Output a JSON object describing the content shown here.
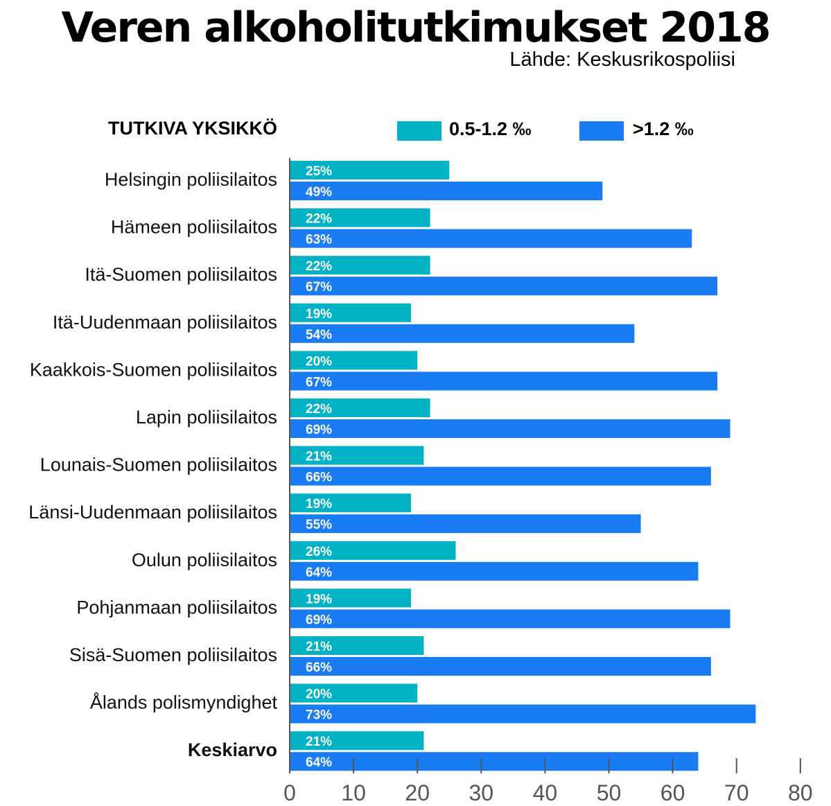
{
  "title": "Veren alkoholitutkimukset 2018",
  "source": "Lähde: Keskusrikospoliisi",
  "category_header": "TUTKIVA YKSIKKÖ",
  "colors": {
    "series1": "#00b2c4",
    "series2": "#1a7cf2",
    "axis": "#555555"
  },
  "chart_data": {
    "type": "bar",
    "orientation": "horizontal",
    "title": "Veren alkoholitutkimukset 2018",
    "subtitle": "Lähde: Keskusrikospoliisi",
    "categories": [
      "Helsingin poliisilaitos",
      "Hämeen poliisilaitos",
      "Itä-Suomen poliisilaitos",
      "Itä-Uudenmaan poliisilaitos",
      "Kaakkois-Suomen poliisilaitos",
      "Lapin poliisilaitos",
      "Lounais-Suomen poliisilaitos",
      "Länsi-Uudenmaan poliisilaitos",
      "Oulun poliisilaitos",
      "Pohjanmaan poliisilaitos",
      "Sisä-Suomen poliisilaitos",
      "Ålands polismyndighet",
      "Keskiarvo"
    ],
    "series": [
      {
        "name": "0.5-1.2 ‰",
        "values": [
          25,
          22,
          22,
          19,
          20,
          22,
          21,
          19,
          26,
          19,
          21,
          20,
          21
        ]
      },
      {
        "name": ">1.2 ‰",
        "values": [
          49,
          63,
          67,
          54,
          67,
          69,
          66,
          55,
          64,
          69,
          66,
          73,
          64
        ]
      }
    ],
    "value_suffix": "%",
    "xlim": [
      0,
      80
    ],
    "xticks": [
      0,
      10,
      20,
      30,
      40,
      50,
      60,
      70,
      80
    ],
    "legend_position": "top"
  }
}
